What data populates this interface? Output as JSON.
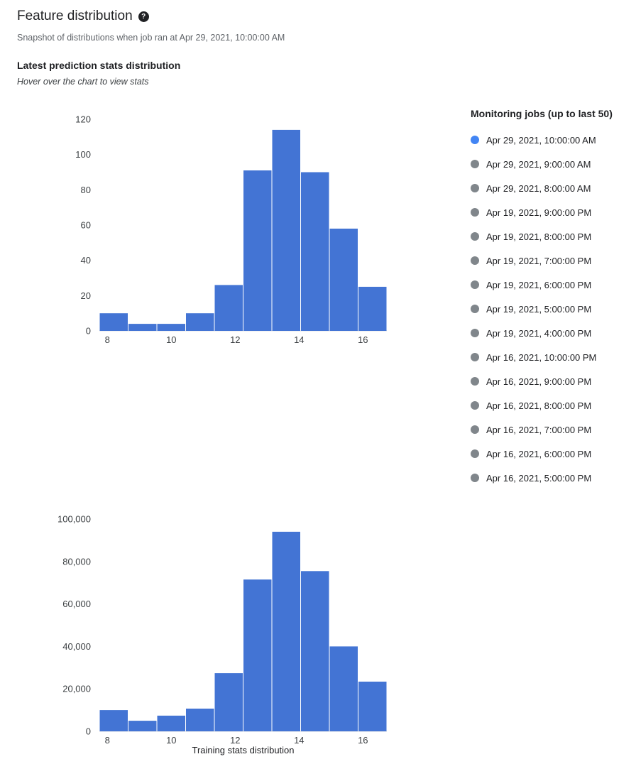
{
  "page": {
    "title": "Feature distribution",
    "help_icon_glyph": "?",
    "subtitle": "Snapshot of distributions when job ran at Apr 29, 2021, 10:00:00 AM",
    "section_title": "Latest prediction stats distribution",
    "section_hint": "Hover over the chart to view stats"
  },
  "monitoring_jobs": {
    "title": "Monitoring jobs (up to last 50)",
    "selected_index": 0,
    "selected_color": "#4285f4",
    "unselected_color": "#80868b",
    "items": [
      "Apr 29, 2021, 10:00:00 AM",
      "Apr 29, 2021, 9:00:00 AM",
      "Apr 29, 2021, 8:00:00 AM",
      "Apr 19, 2021, 9:00:00 PM",
      "Apr 19, 2021, 8:00:00 PM",
      "Apr 19, 2021, 7:00:00 PM",
      "Apr 19, 2021, 6:00:00 PM",
      "Apr 19, 2021, 5:00:00 PM",
      "Apr 19, 2021, 4:00:00 PM",
      "Apr 16, 2021, 10:00:00 PM",
      "Apr 16, 2021, 9:00:00 PM",
      "Apr 16, 2021, 8:00:00 PM",
      "Apr 16, 2021, 7:00:00 PM",
      "Apr 16, 2021, 6:00:00 PM",
      "Apr 16, 2021, 5:00:00 PM"
    ]
  },
  "chart_data": [
    {
      "type": "bar",
      "title": "Latest prediction stats distribution",
      "bar_color": "#4374d4",
      "xlim": [
        7.75,
        16.75
      ],
      "bin_width": 0.9,
      "x_ticks": [
        8,
        10,
        12,
        14,
        16
      ],
      "ylim": [
        0,
        120
      ],
      "y_tick_values": [
        0,
        20,
        40,
        60,
        80,
        100,
        120
      ],
      "y_tick_labels": [
        "0",
        "20",
        "40",
        "60",
        "80",
        "100",
        "120"
      ],
      "values": [
        10,
        4,
        4,
        10,
        26,
        91,
        114,
        90,
        58,
        25
      ],
      "xlabel": "",
      "grid": false,
      "legend": "none"
    },
    {
      "type": "bar",
      "title": "Training stats distribution",
      "bar_color": "#4374d4",
      "xlim": [
        7.75,
        16.75
      ],
      "bin_width": 0.9,
      "x_ticks": [
        8,
        10,
        12,
        14,
        16
      ],
      "ylim": [
        0,
        100000
      ],
      "y_tick_values": [
        0,
        20000,
        40000,
        60000,
        80000,
        100000
      ],
      "y_tick_labels": [
        "0",
        "20,000",
        "40,000",
        "60,000",
        "80,000",
        "100,000"
      ],
      "values": [
        10000,
        5000,
        7400,
        10700,
        27400,
        71500,
        94000,
        75500,
        40000,
        23400
      ],
      "xlabel": "Training stats distribution",
      "grid": false,
      "legend": "none"
    }
  ]
}
